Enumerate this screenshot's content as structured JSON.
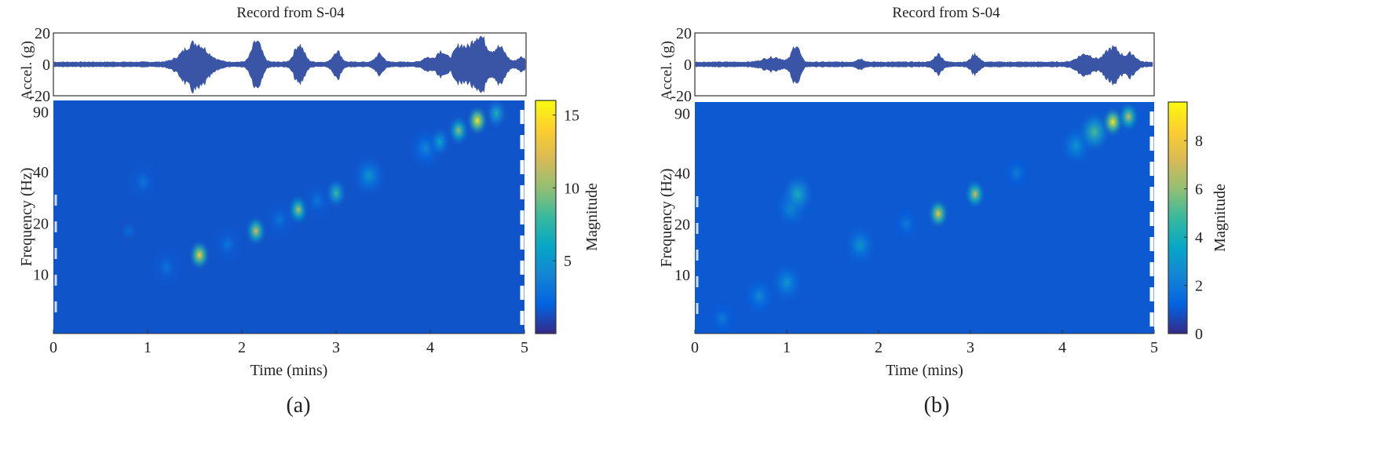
{
  "chart_data": [
    {
      "type": "heatmap",
      "panel_label": "(a)",
      "title": "Record from S-04",
      "waveform": {
        "ylabel": "Accel. (g)",
        "ylim": [
          -20,
          20
        ],
        "yticks": [
          "20",
          "0",
          "-20"
        ],
        "color": "#3a55a6",
        "baseline_amplitude": 1.5,
        "bursts": [
          {
            "time": 1.5,
            "width": 0.12,
            "pos": 12,
            "neg": 15
          },
          {
            "time": 2.15,
            "width": 0.05,
            "pos": 13,
            "neg": 13
          },
          {
            "time": 2.6,
            "width": 0.05,
            "pos": 11,
            "neg": 11
          },
          {
            "time": 3.0,
            "width": 0.04,
            "pos": 7,
            "neg": 8
          },
          {
            "time": 3.45,
            "width": 0.04,
            "pos": 5,
            "neg": 5
          },
          {
            "time": 3.95,
            "width": 0.04,
            "pos": 3,
            "neg": 3
          },
          {
            "time": 4.1,
            "width": 0.05,
            "pos": 7,
            "neg": 7
          },
          {
            "time": 4.3,
            "width": 0.06,
            "pos": 10,
            "neg": 10
          },
          {
            "time": 4.5,
            "width": 0.08,
            "pos": 17,
            "neg": 17
          },
          {
            "time": 4.72,
            "width": 0.06,
            "pos": 9,
            "neg": 10
          },
          {
            "time": 4.95,
            "width": 0.04,
            "pos": 3,
            "neg": 3
          }
        ]
      },
      "spectrogram": {
        "xlabel": "Time (mins)",
        "ylabel": "Frequency (Hz)",
        "xlim": [
          0,
          5
        ],
        "xticks": [
          "0",
          "1",
          "2",
          "3",
          "4",
          "5"
        ],
        "ylim": [
          4.5,
          105
        ],
        "yscale": "log",
        "yticks": [
          "10",
          "20",
          "40",
          "90"
        ],
        "colorbar_label": "Magnitude",
        "clim": [
          0,
          16
        ],
        "colorbar_ticks": [
          "5",
          "10",
          "15"
        ],
        "background_magnitude": 1,
        "hotspots": [
          {
            "time": 0.95,
            "freq": 35,
            "magnitude": 3
          },
          {
            "time": 0.8,
            "freq": 18,
            "magnitude": 2.5
          },
          {
            "time": 1.2,
            "freq": 11,
            "magnitude": 3
          },
          {
            "time": 1.55,
            "freq": 13,
            "magnitude": 14
          },
          {
            "time": 1.85,
            "freq": 15,
            "magnitude": 3
          },
          {
            "time": 2.15,
            "freq": 18,
            "magnitude": 12
          },
          {
            "time": 2.4,
            "freq": 21,
            "magnitude": 3
          },
          {
            "time": 2.6,
            "freq": 24,
            "magnitude": 11
          },
          {
            "time": 2.8,
            "freq": 27,
            "magnitude": 3
          },
          {
            "time": 3.0,
            "freq": 30,
            "magnitude": 8
          },
          {
            "time": 3.35,
            "freq": 38,
            "magnitude": 5
          },
          {
            "time": 3.95,
            "freq": 55,
            "magnitude": 4
          },
          {
            "time": 4.1,
            "freq": 60,
            "magnitude": 6
          },
          {
            "time": 4.3,
            "freq": 70,
            "magnitude": 10
          },
          {
            "time": 4.5,
            "freq": 80,
            "magnitude": 15
          },
          {
            "time": 4.7,
            "freq": 88,
            "magnitude": 7
          }
        ]
      }
    },
    {
      "type": "heatmap",
      "panel_label": "(b)",
      "title": "Record from S-04",
      "waveform": {
        "ylabel": "Accel. (g)",
        "ylim": [
          -20,
          20
        ],
        "yticks": [
          "20",
          "0",
          "-20"
        ],
        "color": "#3a55a6",
        "baseline_amplitude": 1.5,
        "bursts": [
          {
            "time": 0.85,
            "width": 0.1,
            "pos": 3,
            "neg": 3
          },
          {
            "time": 1.1,
            "width": 0.04,
            "pos": 11,
            "neg": 12
          },
          {
            "time": 1.8,
            "width": 0.04,
            "pos": 2,
            "neg": 2
          },
          {
            "time": 2.65,
            "width": 0.04,
            "pos": 5,
            "neg": 5
          },
          {
            "time": 3.05,
            "width": 0.04,
            "pos": 5,
            "neg": 5
          },
          {
            "time": 4.25,
            "width": 0.08,
            "pos": 5,
            "neg": 6
          },
          {
            "time": 4.55,
            "width": 0.08,
            "pos": 9,
            "neg": 10
          },
          {
            "time": 4.75,
            "width": 0.05,
            "pos": 5,
            "neg": 6
          }
        ]
      },
      "spectrogram": {
        "xlabel": "Time (mins)",
        "ylabel": "Frequency (Hz)",
        "xlim": [
          0,
          5
        ],
        "xticks": [
          "0",
          "1",
          "2",
          "3",
          "4",
          "5"
        ],
        "ylim": [
          4.5,
          105
        ],
        "yscale": "log",
        "yticks": [
          "10",
          "20",
          "40",
          "90"
        ],
        "colorbar_label": "Magnitude",
        "clim": [
          0,
          9.6
        ],
        "colorbar_ticks": [
          "0",
          "2",
          "4",
          "6",
          "8"
        ],
        "background_magnitude": 0.7,
        "hotspots": [
          {
            "time": 0.3,
            "freq": 5.5,
            "magnitude": 2
          },
          {
            "time": 0.7,
            "freq": 7.5,
            "magnitude": 2.5
          },
          {
            "time": 1.0,
            "freq": 9,
            "magnitude": 3
          },
          {
            "time": 1.05,
            "freq": 25,
            "magnitude": 3
          },
          {
            "time": 1.12,
            "freq": 30,
            "magnitude": 4
          },
          {
            "time": 1.8,
            "freq": 15,
            "magnitude": 3
          },
          {
            "time": 2.3,
            "freq": 20,
            "magnitude": 2
          },
          {
            "time": 2.65,
            "freq": 23,
            "magnitude": 8
          },
          {
            "time": 3.05,
            "freq": 30,
            "magnitude": 7
          },
          {
            "time": 3.5,
            "freq": 40,
            "magnitude": 2
          },
          {
            "time": 4.15,
            "freq": 58,
            "magnitude": 3
          },
          {
            "time": 4.35,
            "freq": 70,
            "magnitude": 5
          },
          {
            "time": 4.55,
            "freq": 80,
            "magnitude": 9
          },
          {
            "time": 4.72,
            "freq": 86,
            "magnitude": 7
          }
        ]
      }
    }
  ]
}
